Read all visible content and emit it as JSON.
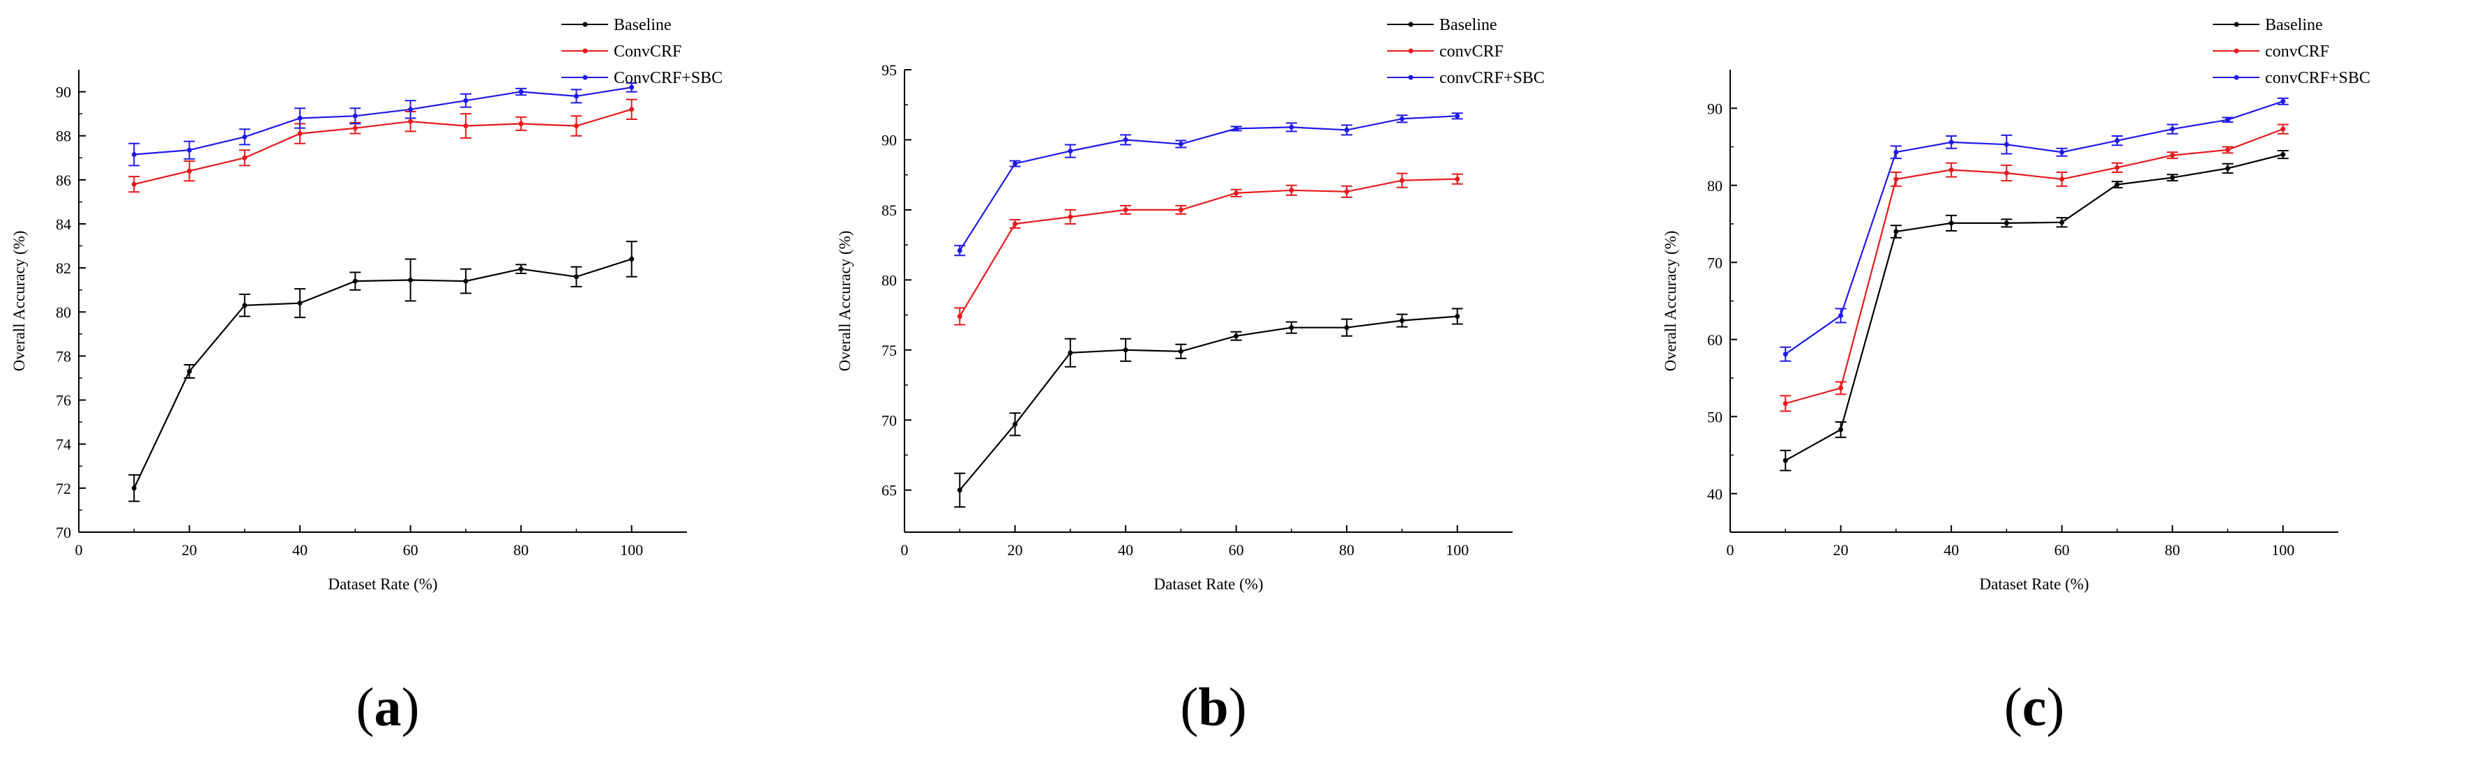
{
  "chart_data": [
    {
      "type": "line",
      "panel_label": "a",
      "xlabel": "Dataset Rate (%)",
      "ylabel": "Overall Accuracy (%)",
      "xlim": [
        0,
        110
      ],
      "ylim": [
        70,
        91
      ],
      "xticks": [
        "0",
        "20",
        "40",
        "60",
        "80",
        "100"
      ],
      "yticks": [
        "70",
        "72",
        "74",
        "76",
        "78",
        "80",
        "82",
        "84",
        "86",
        "88",
        "90"
      ],
      "legend_position": "top-right-outside",
      "x": [
        10,
        20,
        30,
        40,
        50,
        60,
        70,
        80,
        90,
        100
      ],
      "series": [
        {
          "name": "Baseline",
          "color": "#000000",
          "values": [
            72.0,
            77.3,
            80.3,
            80.4,
            81.4,
            81.45,
            81.4,
            81.95,
            81.6,
            82.4
          ],
          "errors": [
            0.6,
            0.3,
            0.5,
            0.65,
            0.4,
            0.95,
            0.55,
            0.2,
            0.45,
            0.8
          ]
        },
        {
          "name": "ConvCRF",
          "color": "#e8191c",
          "values": [
            85.8,
            86.4,
            87.0,
            88.1,
            88.35,
            88.65,
            88.45,
            88.55,
            88.45,
            89.2
          ],
          "errors": [
            0.35,
            0.45,
            0.35,
            0.45,
            0.25,
            0.45,
            0.55,
            0.3,
            0.45,
            0.45
          ]
        },
        {
          "name": "ConvCRF+SBC",
          "color": "#1f1ae8",
          "values": [
            87.15,
            87.35,
            87.95,
            88.8,
            88.9,
            89.2,
            89.6,
            90.0,
            89.8,
            90.2
          ],
          "errors": [
            0.5,
            0.4,
            0.35,
            0.45,
            0.35,
            0.4,
            0.3,
            0.15,
            0.3,
            0.2
          ]
        }
      ]
    },
    {
      "type": "line",
      "panel_label": "b",
      "xlabel": "Dataset Rate (%)",
      "ylabel": "Overall Accuracy (%)",
      "xlim": [
        0,
        110
      ],
      "ylim": [
        62,
        95
      ],
      "xticks": [
        "0",
        "20",
        "40",
        "60",
        "80",
        "100"
      ],
      "yticks": [
        "65",
        "70",
        "75",
        "80",
        "85",
        "90",
        "95"
      ],
      "legend_position": "top-right-outside",
      "x": [
        10,
        20,
        30,
        40,
        50,
        60,
        70,
        80,
        90,
        100
      ],
      "series": [
        {
          "name": "Baseline",
          "color": "#000000",
          "values": [
            65.0,
            69.7,
            74.8,
            75.0,
            74.9,
            76.0,
            76.6,
            76.6,
            77.1,
            77.4
          ],
          "errors": [
            1.2,
            0.8,
            1.0,
            0.8,
            0.5,
            0.3,
            0.4,
            0.6,
            0.45,
            0.55
          ]
        },
        {
          "name": "convCRF",
          "color": "#e8191c",
          "values": [
            77.4,
            84.0,
            84.5,
            85.0,
            85.0,
            86.2,
            86.4,
            86.3,
            87.1,
            87.2
          ],
          "errors": [
            0.6,
            0.3,
            0.5,
            0.3,
            0.3,
            0.25,
            0.35,
            0.4,
            0.5,
            0.35
          ]
        },
        {
          "name": "convCRF+SBC",
          "color": "#1f1ae8",
          "values": [
            82.1,
            88.3,
            89.2,
            90.0,
            89.7,
            90.8,
            90.9,
            90.7,
            91.5,
            91.7
          ],
          "errors": [
            0.35,
            0.2,
            0.45,
            0.35,
            0.25,
            0.15,
            0.3,
            0.35,
            0.25,
            0.2
          ]
        }
      ]
    },
    {
      "type": "line",
      "panel_label": "c",
      "xlabel": "Dataset Rate (%)",
      "ylabel": "Overall Accuracy (%)",
      "xlim": [
        0,
        110
      ],
      "ylim": [
        35,
        95
      ],
      "xticks": [
        "0",
        "20",
        "40",
        "60",
        "80",
        "100"
      ],
      "yticks": [
        "40",
        "50",
        "60",
        "70",
        "80",
        "90"
      ],
      "legend_position": "top-right-outside",
      "x": [
        10,
        20,
        30,
        40,
        50,
        60,
        70,
        80,
        90,
        100
      ],
      "series": [
        {
          "name": "Baseline",
          "color": "#000000",
          "values": [
            44.3,
            48.3,
            74.0,
            75.1,
            75.1,
            75.2,
            80.1,
            81.0,
            82.2,
            84.0
          ],
          "errors": [
            1.3,
            1.0,
            0.8,
            1.0,
            0.5,
            0.6,
            0.4,
            0.4,
            0.6,
            0.5
          ]
        },
        {
          "name": "convCRF",
          "color": "#e8191c",
          "values": [
            51.7,
            53.7,
            80.8,
            82.0,
            81.6,
            80.8,
            82.3,
            83.9,
            84.6,
            87.3
          ],
          "errors": [
            1.0,
            0.8,
            0.9,
            0.9,
            1.0,
            0.9,
            0.6,
            0.4,
            0.4,
            0.6
          ]
        },
        {
          "name": "convCRF+SBC",
          "color": "#1f1ae8",
          "values": [
            58.1,
            63.1,
            84.3,
            85.6,
            85.3,
            84.3,
            85.8,
            87.3,
            88.5,
            90.9
          ],
          "errors": [
            0.9,
            0.9,
            0.8,
            0.8,
            1.2,
            0.5,
            0.6,
            0.6,
            0.3,
            0.4
          ]
        }
      ]
    }
  ]
}
